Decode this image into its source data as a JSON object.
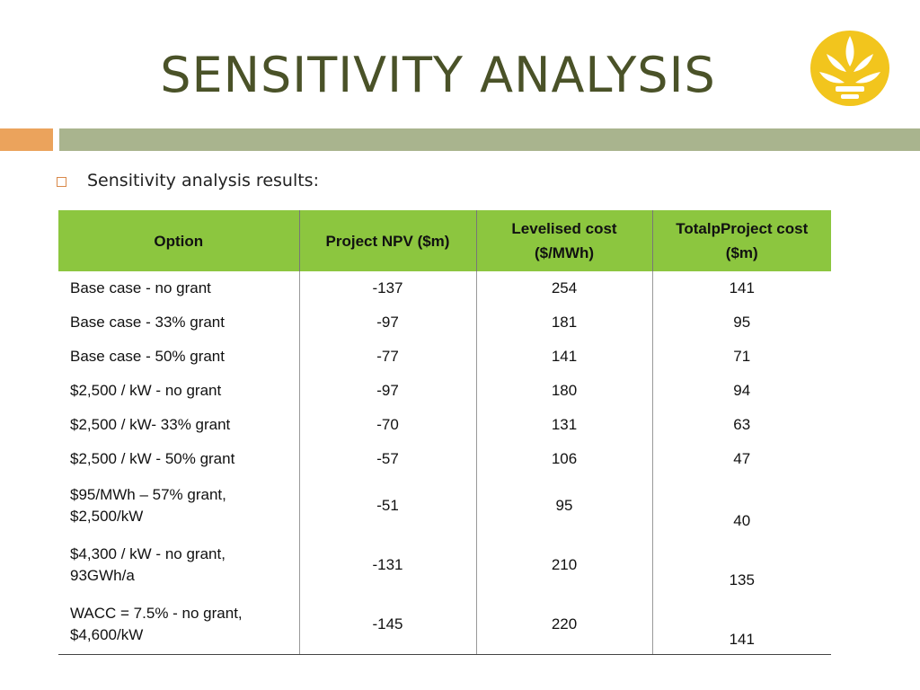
{
  "header": {
    "title": "SENSITIVITY ANALYSIS"
  },
  "bullet": "Sensitivity analysis results:",
  "table": {
    "columns": [
      "Option",
      "Project NPV ($m)",
      "Levelised cost\n($/MWh)",
      "TotalpProject cost\n($m)"
    ],
    "rows": [
      [
        "Base case - no grant",
        -137,
        254,
        141
      ],
      [
        "Base case - 33% grant",
        -97,
        181,
        95
      ],
      [
        "Base case - 50% grant",
        -77,
        141,
        71
      ],
      [
        "$2,500 / kW - no grant",
        -97,
        180,
        94
      ],
      [
        "$2,500 / kW- 33% grant",
        -70,
        131,
        63
      ],
      [
        "$2,500 / kW - 50% grant",
        -57,
        106,
        47
      ],
      [
        "$95/MWh – 57% grant,\n$2,500/kW",
        -51,
        95,
        40
      ],
      [
        "$4,300 / kW - no grant,\n93GWh/a",
        -131,
        210,
        135
      ],
      [
        "WACC = 7.5% - no grant,\n$4,600/kW",
        -145,
        220,
        141
      ]
    ]
  }
}
